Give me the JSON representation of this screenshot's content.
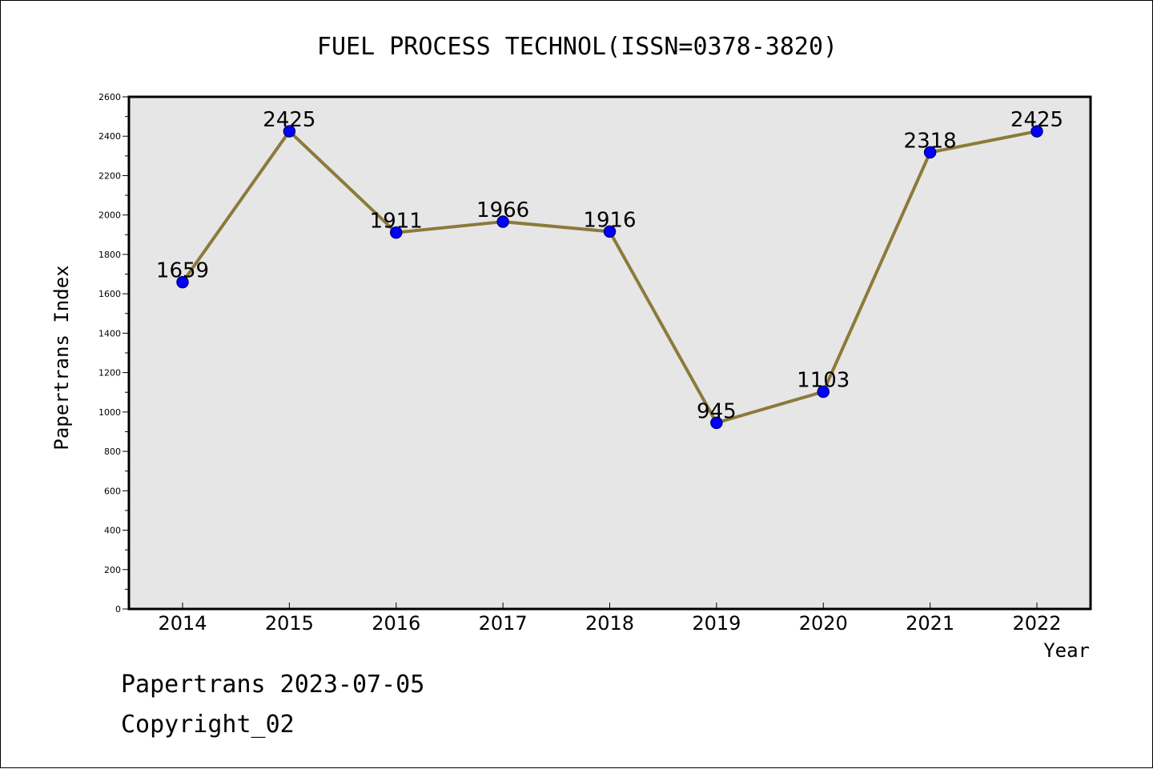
{
  "chart_data": {
    "type": "line",
    "title": "FUEL PROCESS TECHNOL(ISSN=0378-3820)",
    "xlabel": "Year",
    "ylabel": "Papertrans Index",
    "categories": [
      "2014",
      "2015",
      "2016",
      "2017",
      "2018",
      "2019",
      "2020",
      "2021",
      "2022"
    ],
    "series": [
      {
        "values": [
          1659,
          2425,
          1911,
          1966,
          1916,
          945,
          1103,
          2318,
          2425
        ]
      }
    ],
    "data_labels": [
      "1659",
      "2425",
      "1911",
      "1966",
      "1916",
      "945",
      "1103",
      "2318",
      "2425"
    ],
    "ylim": [
      0,
      2600
    ],
    "yticks": [
      "0",
      "200",
      "400",
      "600",
      "800",
      "1000",
      "1200",
      "1400",
      "1600",
      "1800",
      "2000",
      "2200",
      "2400",
      "2600"
    ],
    "grid": false,
    "colors": {
      "line": "#8b7a3a",
      "marker_fill": "#0000ff",
      "marker_stroke": "#000080",
      "plot_bg": "#e6e6e6"
    }
  },
  "footer": {
    "line1": "Papertrans 2023-07-05",
    "line2": "Copyright_02"
  }
}
